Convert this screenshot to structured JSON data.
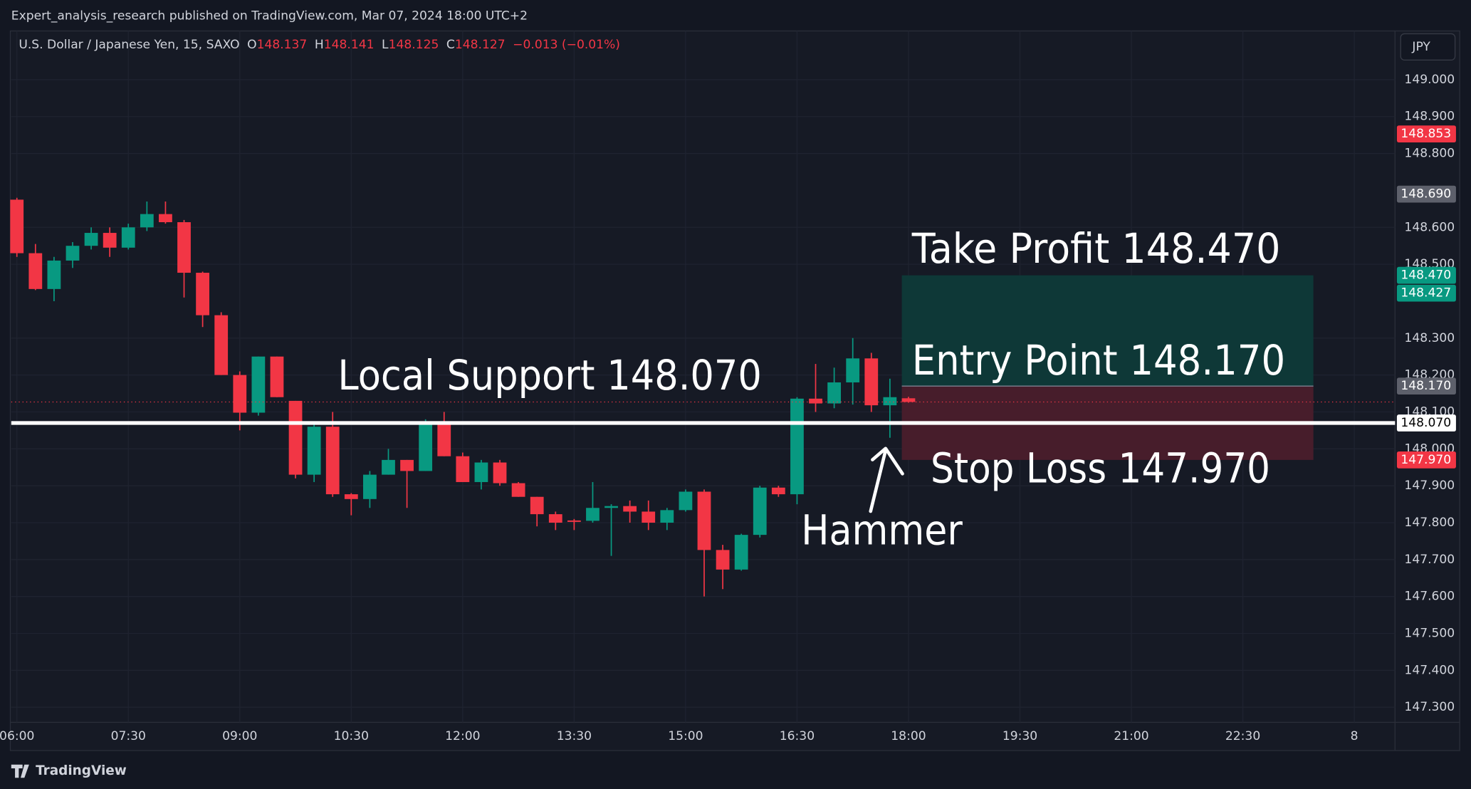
{
  "header": {
    "published": "Expert_analysis_research published on TradingView.com, Mar 07, 2024 18:00 UTC+2",
    "symbol": "U.S. Dollar / Japanese Yen, 15, SAXO",
    "o": "O",
    "h": "H",
    "l": "L",
    "c": "C",
    "change": "−0.013 (−0.01%)",
    "currency": "JPY",
    "brand": "TradingView"
  },
  "chart_data": {
    "type": "candlestick",
    "open": [
      148.675,
      148.53,
      148.433,
      148.51,
      148.55,
      148.585,
      148.545,
      148.6,
      148.636,
      148.614,
      148.477,
      148.362,
      148.2,
      148.098,
      148.25,
      148.13,
      147.93,
      148.06,
      147.877,
      147.864,
      147.93,
      147.97,
      147.94,
      148.073,
      147.98,
      147.91,
      147.963,
      147.907,
      147.87,
      147.823,
      147.806,
      147.805,
      147.84,
      147.845,
      147.83,
      147.8,
      147.834,
      147.884,
      147.726,
      147.673,
      147.767,
      147.895,
      147.877,
      148.136,
      148.123,
      148.18,
      148.245,
      148.118,
      148.137
    ],
    "high": [
      148.68,
      148.555,
      148.52,
      148.56,
      148.6,
      148.6,
      148.61,
      148.67,
      148.67,
      148.62,
      148.48,
      148.37,
      148.21,
      148.25,
      148.25,
      148.13,
      148.07,
      148.1,
      147.88,
      147.94,
      148.0,
      147.97,
      148.08,
      148.1,
      147.99,
      147.97,
      147.97,
      147.91,
      147.87,
      147.83,
      147.81,
      147.91,
      147.85,
      147.86,
      147.86,
      147.84,
      147.89,
      147.89,
      147.74,
      147.77,
      147.9,
      147.9,
      148.14,
      148.23,
      148.22,
      148.3,
      148.26,
      148.19,
      148.141
    ],
    "low": [
      148.52,
      148.43,
      148.4,
      148.49,
      148.54,
      148.52,
      148.54,
      148.59,
      148.61,
      148.41,
      148.33,
      148.2,
      148.05,
      148.09,
      148.14,
      147.92,
      147.91,
      147.87,
      147.82,
      147.84,
      147.93,
      147.84,
      147.94,
      147.98,
      147.91,
      147.89,
      147.9,
      147.87,
      147.79,
      147.78,
      147.78,
      147.8,
      147.71,
      147.8,
      147.78,
      147.78,
      147.83,
      147.6,
      147.62,
      147.67,
      147.76,
      147.87,
      147.85,
      148.1,
      148.11,
      148.12,
      148.1,
      148.03,
      148.125
    ],
    "close": [
      148.53,
      148.433,
      148.51,
      148.55,
      148.585,
      148.545,
      148.6,
      148.636,
      148.614,
      148.477,
      148.362,
      148.2,
      148.098,
      148.25,
      148.14,
      147.93,
      148.06,
      147.877,
      147.864,
      147.93,
      147.97,
      147.94,
      148.073,
      147.98,
      147.91,
      147.963,
      147.907,
      147.87,
      147.823,
      147.8,
      147.804,
      147.84,
      147.845,
      147.83,
      147.8,
      147.834,
      147.884,
      147.726,
      147.673,
      147.767,
      147.895,
      147.877,
      148.136,
      148.123,
      148.18,
      148.245,
      148.118,
      148.14,
      148.127
    ],
    "up_color": "#089981",
    "down_color": "#f23645",
    "ylim": [
      147.259,
      149.132
    ],
    "yticks": [
      {
        "value": 147.3,
        "label": "147.300"
      },
      {
        "value": 147.4,
        "label": "147.400"
      },
      {
        "value": 147.5,
        "label": "147.500"
      },
      {
        "value": 147.6,
        "label": "147.600"
      },
      {
        "value": 147.7,
        "label": "147.700"
      },
      {
        "value": 147.8,
        "label": "147.800"
      },
      {
        "value": 147.9,
        "label": "147.900"
      },
      {
        "value": 148.0,
        "label": "148.000"
      },
      {
        "value": 148.1,
        "label": "148.100"
      },
      {
        "value": 148.2,
        "label": "148.200"
      },
      {
        "value": 148.3,
        "label": "148.300"
      },
      {
        "value": 148.5,
        "label": "148.500"
      },
      {
        "value": 148.6,
        "label": "148.600"
      },
      {
        "value": 148.8,
        "label": "148.800"
      },
      {
        "value": 148.9,
        "label": "148.900"
      },
      {
        "value": 149.0,
        "label": "149.000"
      }
    ],
    "xlim": [
      -0.303,
      74.192
    ],
    "xticks": [
      {
        "value": 0,
        "label": "06:00"
      },
      {
        "value": 6,
        "label": "07:30"
      },
      {
        "value": 12,
        "label": "09:00"
      },
      {
        "value": 18,
        "label": "10:30"
      },
      {
        "value": 24,
        "label": "12:00"
      },
      {
        "value": 30,
        "label": "13:30"
      },
      {
        "value": 36,
        "label": "15:00"
      },
      {
        "value": 42,
        "label": "16:30"
      },
      {
        "value": 48,
        "label": "18:00"
      },
      {
        "value": 54,
        "label": "19:30"
      },
      {
        "value": 60,
        "label": "21:00"
      },
      {
        "value": 66,
        "label": "22:30"
      },
      {
        "value": 72,
        "label": "8"
      }
    ],
    "grid": true,
    "support": 148.07,
    "position": {
      "take_profit": 148.47,
      "entry": 148.17,
      "stop_loss": 147.97
    },
    "price_labels": [
      {
        "value": 148.853,
        "label": "148.853",
        "color": "#f23645",
        "text_color": "#ffffff"
      },
      {
        "value": 148.69,
        "label": "148.690",
        "color": "#5d606b",
        "text_color": "#ffffff"
      },
      {
        "value": 148.47,
        "label": "148.470",
        "color": "#089981",
        "text_color": "#ffffff"
      },
      {
        "value": 148.427,
        "label": "148.427",
        "color": "#089981",
        "text_color": "#ffffff"
      },
      {
        "value": 148.17,
        "label": "148.170",
        "color": "#5d606b",
        "text_color": "#ffffff"
      },
      {
        "value": 148.07,
        "label": "148.070",
        "color": "#ffffff",
        "text_color": "#000000"
      },
      {
        "value": 147.97,
        "label": "147.970",
        "color": "#f23645",
        "text_color": "#ffffff"
      }
    ],
    "annotations": {
      "take_profit": "Take Profit 148.470",
      "entry": "Entry Point 148.170",
      "stop_loss": "Stop Loss 147.970",
      "support": "Local Support 148.070",
      "hammer": "Hammer"
    }
  }
}
